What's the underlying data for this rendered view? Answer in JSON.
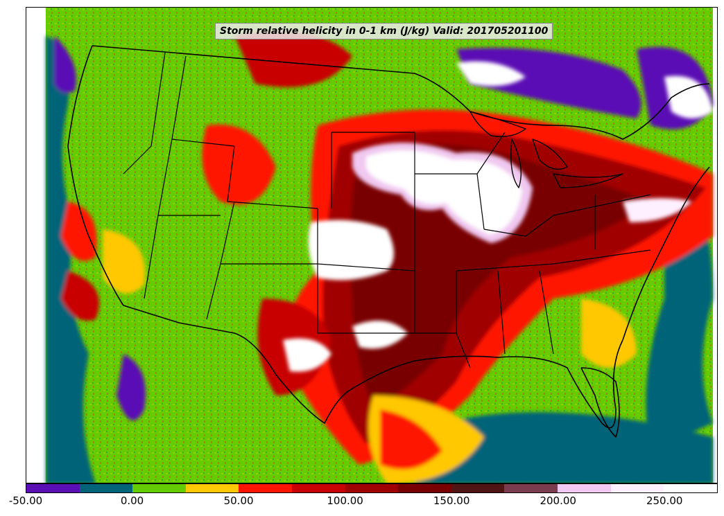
{
  "title": "Storm relative helicity in 0-1 km (J/kg) Valid: 201705201100",
  "colorbar": {
    "min": -50,
    "max": 275,
    "step": 25,
    "colors": [
      "#5a0fb4",
      "#006478",
      "#64cc00",
      "#ffc800",
      "#ff1400",
      "#c80000",
      "#a00000",
      "#780000",
      "#501414",
      "#7c3c50",
      "#f0c8f0",
      "#fff0ff",
      "#ffffff"
    ],
    "tick_labels": [
      "-50.00",
      "0.00",
      "50.00",
      "100.00",
      "150.00",
      "200.00",
      "250.00"
    ],
    "tick_values": [
      -50,
      0,
      50,
      100,
      150,
      200,
      250
    ]
  },
  "map": {
    "region": "Continental United States",
    "background_color": "#64cc00",
    "boundary_color": "#000000"
  }
}
